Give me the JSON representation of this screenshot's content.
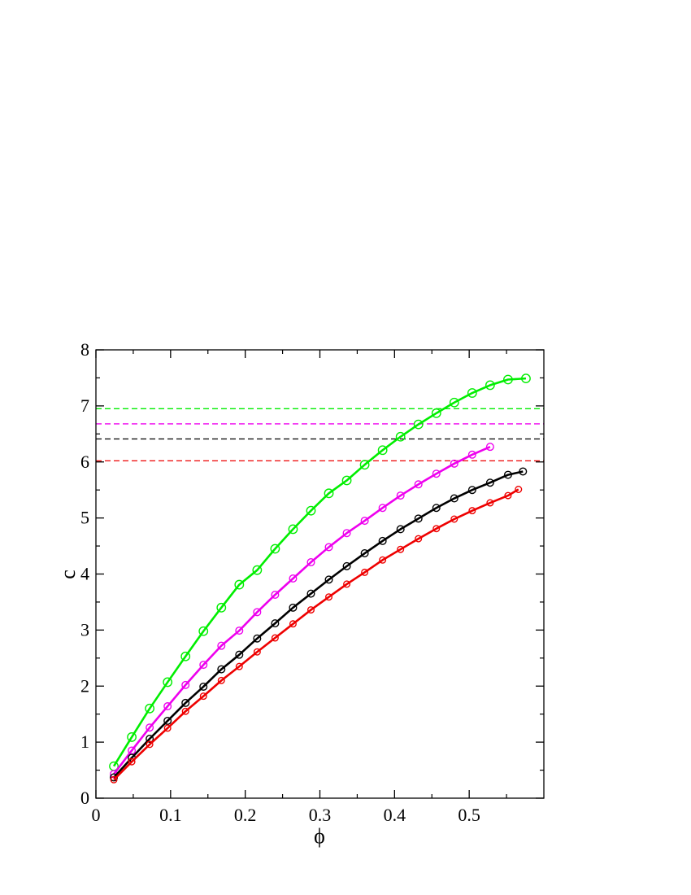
{
  "chart_data": {
    "type": "line",
    "xlabel": "ϕ",
    "ylabel": "c",
    "xlim": [
      0,
      0.6
    ],
    "ylim": [
      0,
      8
    ],
    "x_ticks": [
      0,
      0.1,
      0.2,
      0.3,
      0.4,
      0.5
    ],
    "x_tick_labels": [
      "0",
      "0.1",
      "0.2",
      "0.3",
      "0.4",
      "0.5"
    ],
    "y_ticks": [
      0,
      1,
      2,
      3,
      4,
      5,
      6,
      7,
      8
    ],
    "y_tick_labels": [
      "0",
      "1",
      "2",
      "3",
      "4",
      "5",
      "6",
      "7",
      "8"
    ],
    "grid": false,
    "legend": "none",
    "series": [
      {
        "color": "#00ee00",
        "marker": "circle",
        "x": [
          0.024,
          0.048,
          0.072,
          0.096,
          0.12,
          0.144,
          0.168,
          0.192,
          0.216,
          0.24,
          0.264,
          0.288,
          0.312,
          0.336,
          0.36,
          0.384,
          0.408,
          0.432,
          0.456,
          0.48,
          0.504,
          0.528,
          0.552,
          0.576
        ],
        "y": [
          0.57,
          1.09,
          1.6,
          2.07,
          2.53,
          2.98,
          3.4,
          3.81,
          4.07,
          4.45,
          4.8,
          5.13,
          5.44,
          5.67,
          5.95,
          6.21,
          6.45,
          6.67,
          6.87,
          7.06,
          7.23,
          7.37,
          7.47,
          7.49
        ]
      },
      {
        "color": "#ee00ee",
        "marker": "circle",
        "x": [
          0.024,
          0.048,
          0.072,
          0.096,
          0.12,
          0.144,
          0.168,
          0.192,
          0.216,
          0.24,
          0.264,
          0.288,
          0.312,
          0.336,
          0.36,
          0.384,
          0.408,
          0.432,
          0.456,
          0.48,
          0.504,
          0.528
        ],
        "y": [
          0.43,
          0.85,
          1.26,
          1.64,
          2.02,
          2.38,
          2.72,
          2.99,
          3.32,
          3.63,
          3.92,
          4.21,
          4.48,
          4.73,
          4.95,
          5.18,
          5.4,
          5.6,
          5.79,
          5.97,
          6.13,
          6.27
        ]
      },
      {
        "color": "#000000",
        "marker": "circle",
        "x": [
          0.024,
          0.048,
          0.072,
          0.096,
          0.12,
          0.144,
          0.168,
          0.192,
          0.216,
          0.24,
          0.264,
          0.288,
          0.312,
          0.336,
          0.36,
          0.384,
          0.408,
          0.432,
          0.456,
          0.48,
          0.504,
          0.528,
          0.552,
          0.572
        ],
        "y": [
          0.37,
          0.72,
          1.06,
          1.38,
          1.7,
          1.99,
          2.3,
          2.56,
          2.85,
          3.12,
          3.4,
          3.65,
          3.9,
          4.14,
          4.37,
          4.59,
          4.8,
          4.99,
          5.18,
          5.35,
          5.5,
          5.63,
          5.77,
          5.83
        ]
      },
      {
        "color": "#ee0000",
        "marker": "circle",
        "x": [
          0.024,
          0.048,
          0.072,
          0.096,
          0.12,
          0.144,
          0.168,
          0.192,
          0.216,
          0.24,
          0.264,
          0.288,
          0.312,
          0.336,
          0.36,
          0.384,
          0.408,
          0.432,
          0.456,
          0.48,
          0.504,
          0.528,
          0.552,
          0.566
        ],
        "y": [
          0.33,
          0.65,
          0.96,
          1.25,
          1.55,
          1.82,
          2.1,
          2.35,
          2.61,
          2.86,
          3.11,
          3.36,
          3.59,
          3.82,
          4.03,
          4.25,
          4.44,
          4.63,
          4.81,
          4.98,
          5.13,
          5.27,
          5.4,
          5.51
        ]
      }
    ],
    "reference_lines": [
      {
        "color": "#00ee00",
        "y": 6.95,
        "style": "dashed"
      },
      {
        "color": "#ee00ee",
        "y": 6.68,
        "style": "dashed"
      },
      {
        "color": "#000000",
        "y": 6.41,
        "style": "dashed"
      },
      {
        "color": "#ee0000",
        "y": 6.02,
        "style": "dashed"
      }
    ]
  }
}
